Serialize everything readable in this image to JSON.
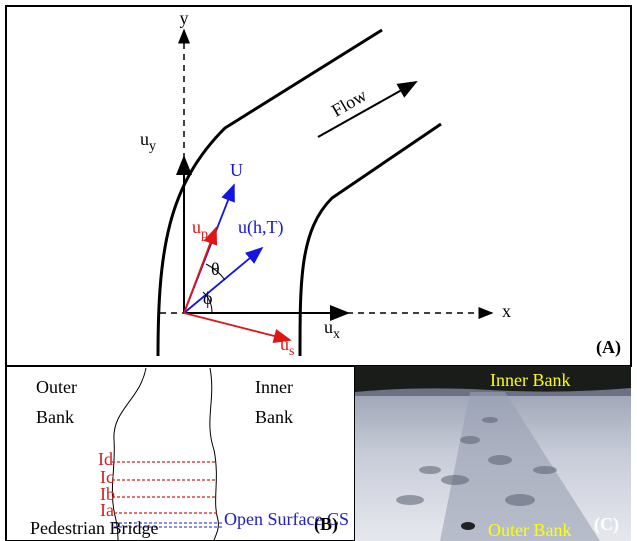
{
  "panel_a": {
    "axis_y": "y",
    "axis_x": "x",
    "flow": "Flow",
    "u_y": {
      "main": "u",
      "sub": "y"
    },
    "u_x": {
      "main": "u",
      "sub": "x"
    },
    "u_p": {
      "main": "u",
      "sub": "p"
    },
    "u_s": {
      "main": "u",
      "sub": "s"
    },
    "big_u": "U",
    "u_ht": "u(h,T)",
    "theta": "θ",
    "phi": "ϕ",
    "label": "(A)"
  },
  "panel_b": {
    "outer_bank": [
      "Outer",
      "Bank"
    ],
    "inner_bank": [
      "Inner",
      "Bank"
    ],
    "sections": [
      "Id",
      "Ic",
      "Ib",
      "Ia"
    ],
    "bridge": "Pedestrian Bridge",
    "open_surface": "Open Surface CS",
    "label": "(B)"
  },
  "panel_c": {
    "inner_bank": "Inner Bank",
    "outer_bank": "Outer Bank",
    "label": "(C)"
  }
}
